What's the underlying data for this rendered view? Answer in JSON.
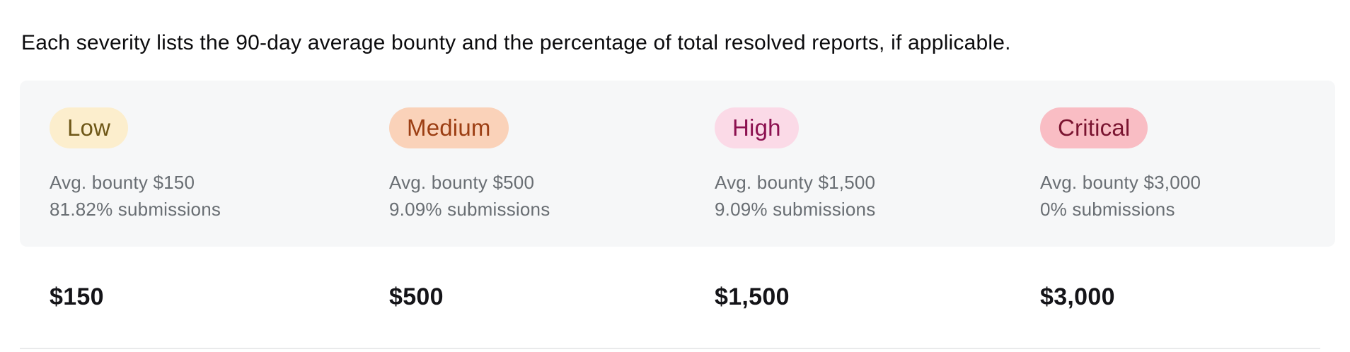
{
  "description": "Each severity lists the 90-day average bounty and the percentage of total resolved reports, if applicable.",
  "severities": [
    {
      "label": "Low",
      "avg_bounty": "Avg. bounty $150",
      "submissions": "81.82% submissions",
      "amount": "$150",
      "badge_bg": "#fceecd",
      "badge_text_color": "#6e5717"
    },
    {
      "label": "Medium",
      "avg_bounty": "Avg. bounty $500",
      "submissions": "9.09% submissions",
      "amount": "$500",
      "badge_bg": "#fad2b9",
      "badge_text_color": "#9c3e13"
    },
    {
      "label": "High",
      "avg_bounty": "Avg. bounty $1,500",
      "submissions": "9.09% submissions",
      "amount": "$1,500",
      "badge_bg": "#fbdae7",
      "badge_text_color": "#8c1150"
    },
    {
      "label": "Critical",
      "avg_bounty": "Avg. bounty $3,000",
      "submissions": "0% submissions",
      "amount": "$3,000",
      "badge_bg": "#f9bdc4",
      "badge_text_color": "#7a1430"
    }
  ],
  "colors": {
    "panel_bg": "#f6f7f8",
    "meta_text": "#696e73",
    "description_text": "#0c0c0e",
    "amount_text": "#141418",
    "divider": "#e9eaeb"
  }
}
